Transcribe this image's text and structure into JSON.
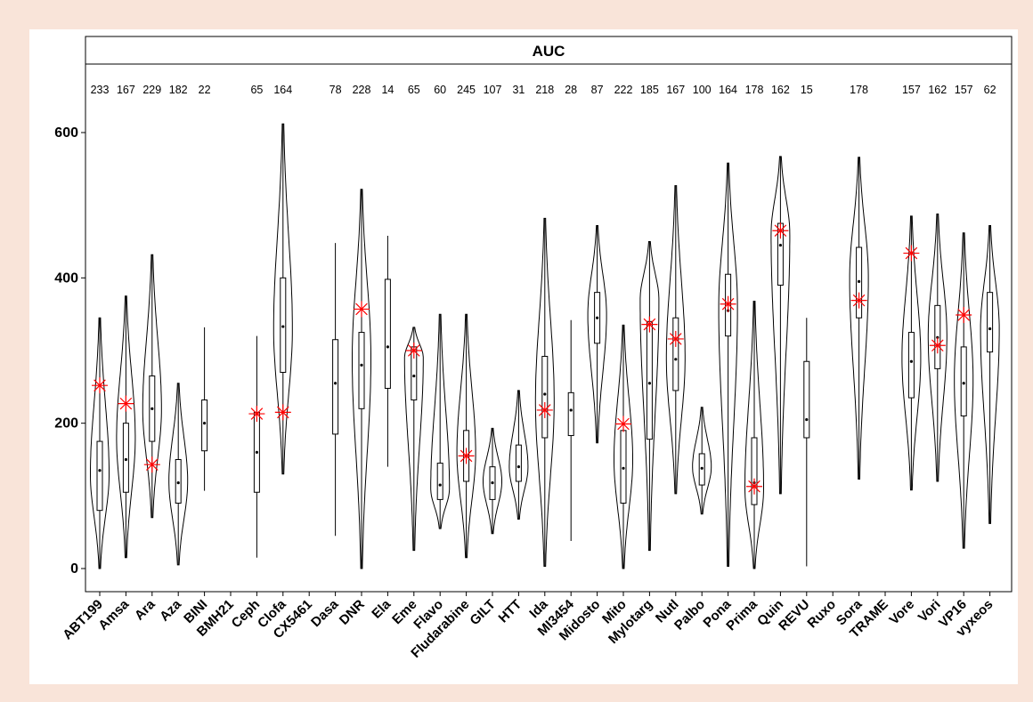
{
  "colors": {
    "page_background": "#f9e4d9",
    "panel_background": "#ffffff",
    "violin_stroke": "#000000",
    "marker": "#ff0000"
  },
  "chart_data": {
    "type": "violin",
    "title": "AUC",
    "ylim": [
      -30,
      690
    ],
    "yticks": [
      0,
      200,
      400,
      600
    ],
    "grid": false,
    "legend": "none",
    "drugs": [
      {
        "name": "ABT199",
        "n": "233",
        "min": 0,
        "max": 345,
        "q1": 80,
        "median": 135,
        "q3": 175,
        "mode": 130,
        "marker": 252
      },
      {
        "name": "Amsa",
        "n": "167",
        "min": 15,
        "max": 375,
        "q1": 105,
        "median": 150,
        "q3": 200,
        "mode": 180,
        "marker": 227
      },
      {
        "name": "Ara",
        "n": "229",
        "min": 70,
        "max": 432,
        "q1": 175,
        "median": 220,
        "q3": 265,
        "mode": 220,
        "marker": 143
      },
      {
        "name": "Aza",
        "n": "182",
        "min": 5,
        "max": 255,
        "q1": 90,
        "median": 118,
        "q3": 150,
        "mode": 120,
        "marker": null
      },
      {
        "name": "BINI",
        "n": "22",
        "min": 107,
        "max": 332,
        "q1": 162,
        "median": 200,
        "q3": 232,
        "mode": null,
        "marker": null
      },
      {
        "name": "BMH21",
        "n": "",
        "min": null,
        "max": null,
        "q1": null,
        "median": null,
        "q3": null,
        "mode": null,
        "marker": null
      },
      {
        "name": "Ceph",
        "n": "65",
        "min": 15,
        "max": 320,
        "q1": 105,
        "median": 160,
        "q3": 215,
        "mode": null,
        "marker": 213
      },
      {
        "name": "Clofa",
        "n": "164",
        "min": 130,
        "max": 612,
        "q1": 270,
        "median": 333,
        "q3": 400,
        "mode": 330,
        "marker": 215
      },
      {
        "name": "CX5461",
        "n": "",
        "min": null,
        "max": null,
        "q1": null,
        "median": null,
        "q3": null,
        "mode": null,
        "marker": null
      },
      {
        "name": "Dasa",
        "n": "78",
        "min": 45,
        "max": 448,
        "q1": 185,
        "median": 255,
        "q3": 315,
        "mode": null,
        "marker": null
      },
      {
        "name": "DNR",
        "n": "228",
        "min": 0,
        "max": 522,
        "q1": 220,
        "median": 280,
        "q3": 325,
        "mode": 290,
        "marker": 357
      },
      {
        "name": "Ela",
        "n": "14",
        "min": 140,
        "max": 458,
        "q1": 248,
        "median": 305,
        "q3": 398,
        "mode": null,
        "marker": null
      },
      {
        "name": "Eme",
        "n": "65",
        "min": 25,
        "max": 332,
        "q1": 232,
        "median": 265,
        "q3": 305,
        "mode": 290,
        "marker": 300
      },
      {
        "name": "Flavo",
        "n": "60",
        "min": 55,
        "max": 350,
        "q1": 95,
        "median": 115,
        "q3": 145,
        "mode": 110,
        "marker": null
      },
      {
        "name": "Fludarabine",
        "n": "245",
        "min": 15,
        "max": 350,
        "q1": 120,
        "median": 155,
        "q3": 190,
        "mode": 160,
        "marker": 155
      },
      {
        "name": "GILT",
        "n": "107",
        "min": 48,
        "max": 193,
        "q1": 95,
        "median": 118,
        "q3": 140,
        "mode": 120,
        "marker": null
      },
      {
        "name": "HTT",
        "n": "31",
        "min": 68,
        "max": 245,
        "q1": 120,
        "median": 140,
        "q3": 170,
        "mode": 140,
        "marker": null
      },
      {
        "name": "Ida",
        "n": "218",
        "min": 3,
        "max": 482,
        "q1": 180,
        "median": 240,
        "q3": 292,
        "mode": 230,
        "marker": 218
      },
      {
        "name": "MI3454",
        "n": "28",
        "min": 38,
        "max": 342,
        "q1": 183,
        "median": 218,
        "q3": 242,
        "mode": null,
        "marker": null
      },
      {
        "name": "Midosto",
        "n": "87",
        "min": 173,
        "max": 472,
        "q1": 310,
        "median": 345,
        "q3": 380,
        "mode": 350,
        "marker": null
      },
      {
        "name": "Mito",
        "n": "222",
        "min": 0,
        "max": 335,
        "q1": 90,
        "median": 138,
        "q3": 190,
        "mode": 150,
        "marker": 199
      },
      {
        "name": "Mylotarg",
        "n": "185",
        "min": 25,
        "max": 450,
        "q1": 178,
        "median": 255,
        "q3": 340,
        "mode": 370,
        "marker": 336
      },
      {
        "name": "Nutl",
        "n": "167",
        "min": 103,
        "max": 527,
        "q1": 245,
        "median": 288,
        "q3": 345,
        "mode": 290,
        "marker": 316
      },
      {
        "name": "Palbo",
        "n": "100",
        "min": 75,
        "max": 222,
        "q1": 115,
        "median": 138,
        "q3": 158,
        "mode": 140,
        "marker": null
      },
      {
        "name": "Pona",
        "n": "164",
        "min": 3,
        "max": 558,
        "q1": 320,
        "median": 355,
        "q3": 405,
        "mode": 360,
        "marker": 364
      },
      {
        "name": "Prima",
        "n": "178",
        "min": 0,
        "max": 368,
        "q1": 88,
        "median": 118,
        "q3": 180,
        "mode": 110,
        "marker": 113
      },
      {
        "name": "Quin",
        "n": "162",
        "min": 103,
        "max": 567,
        "q1": 390,
        "median": 445,
        "q3": 475,
        "mode": 460,
        "marker": 465
      },
      {
        "name": "REVU",
        "n": "15",
        "min": 3,
        "max": 345,
        "q1": 180,
        "median": 205,
        "q3": 285,
        "mode": null,
        "marker": null
      },
      {
        "name": "Ruxo",
        "n": "",
        "min": null,
        "max": null,
        "q1": null,
        "median": null,
        "q3": null,
        "mode": null,
        "marker": null
      },
      {
        "name": "Sora",
        "n": "178",
        "min": 123,
        "max": 566,
        "q1": 345,
        "median": 395,
        "q3": 442,
        "mode": 400,
        "marker": 369
      },
      {
        "name": "TRAME",
        "n": "",
        "min": null,
        "max": null,
        "q1": null,
        "median": null,
        "q3": null,
        "mode": null,
        "marker": null
      },
      {
        "name": "Vore",
        "n": "157",
        "min": 108,
        "max": 485,
        "q1": 235,
        "median": 285,
        "q3": 325,
        "mode": 290,
        "marker": 434
      },
      {
        "name": "Vori",
        "n": "162",
        "min": 120,
        "max": 488,
        "q1": 275,
        "median": 318,
        "q3": 362,
        "mode": 320,
        "marker": 307
      },
      {
        "name": "VP16",
        "n": "157",
        "min": 28,
        "max": 462,
        "q1": 210,
        "median": 255,
        "q3": 305,
        "mode": 260,
        "marker": 349
      },
      {
        "name": "vyxeos",
        "n": "62",
        "min": 62,
        "max": 472,
        "q1": 298,
        "median": 330,
        "q3": 380,
        "mode": 330,
        "marker": null
      }
    ]
  }
}
